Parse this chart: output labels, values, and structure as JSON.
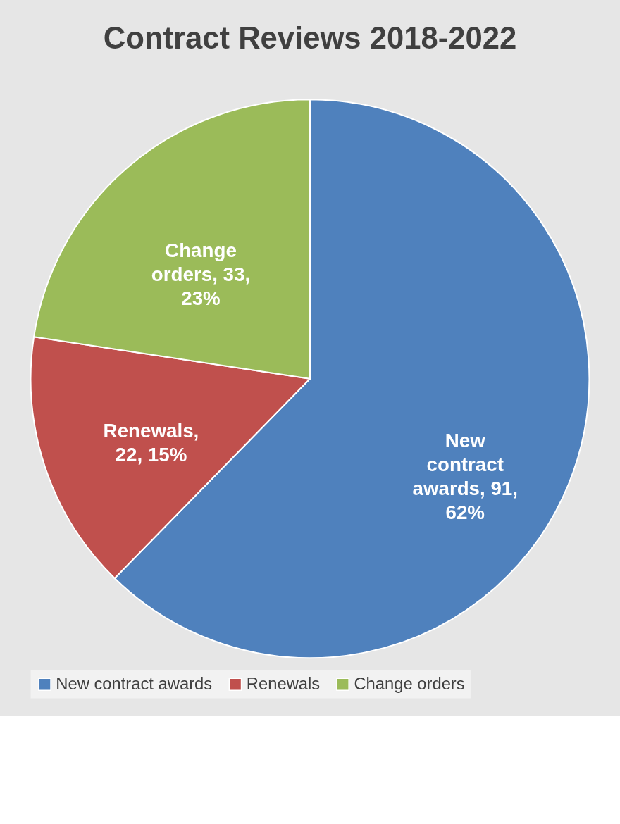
{
  "chart_data": {
    "type": "pie",
    "title": "Contract Reviews 2018-2022",
    "categories": [
      "New contract awards",
      "Renewals",
      "Change orders"
    ],
    "values": [
      91,
      22,
      33
    ],
    "colors": [
      "#4f81bd",
      "#c0504d",
      "#9bbb59"
    ],
    "value_labels": [
      "New contract awards, 91, 62%",
      "Renewals, 22, 15%",
      "Change orders, 33, 23%"
    ],
    "legend": "bottom"
  }
}
